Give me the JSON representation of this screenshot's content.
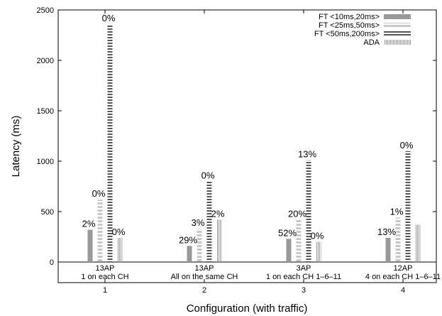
{
  "chart_data": {
    "type": "bar",
    "title": "",
    "xlabel": "Configuration (with traffic)",
    "ylabel": "Latency (ms)",
    "ylim": [
      0,
      2500
    ],
    "yticks": [
      0,
      500,
      1000,
      1500,
      2000,
      2500
    ],
    "xticks": [
      "1",
      "2",
      "3",
      "4"
    ],
    "legend_position": "top-right",
    "categories": [
      "1",
      "2",
      "3",
      "4"
    ],
    "group_labels": [
      [
        "13AP",
        "1 on each CH"
      ],
      [
        "13AP",
        "All on the same CH"
      ],
      [
        "3AP",
        "1 on each CH 1–6–11"
      ],
      [
        "12AP",
        "4 on each CH 1–6–11"
      ]
    ],
    "series": [
      {
        "name": "FT <10ms,20ms>",
        "pattern": "solid",
        "color": "#999999",
        "values": [
          320,
          160,
          230,
          240
        ],
        "labels": [
          "2%",
          "29%",
          "52%",
          "13%"
        ]
      },
      {
        "name": "FT <25ms,50ms>",
        "pattern": "dashed-fine",
        "color": "#c8c8c8",
        "values": [
          620,
          330,
          420,
          440
        ],
        "labels": [
          "0%",
          "3%",
          "20%",
          "1%"
        ]
      },
      {
        "name": "FT <50ms,200ms>",
        "pattern": "dashed-coarse",
        "color": "#555555",
        "values": [
          2360,
          800,
          1010,
          1100
        ],
        "labels": [
          "0%",
          "0%",
          "13%",
          "0%"
        ]
      },
      {
        "name": "ADA",
        "pattern": "hatched",
        "color": "#aaaaaa",
        "values": [
          240,
          420,
          200,
          370
        ],
        "labels": [
          "0%",
          "2%",
          "0%",
          ""
        ]
      }
    ]
  }
}
